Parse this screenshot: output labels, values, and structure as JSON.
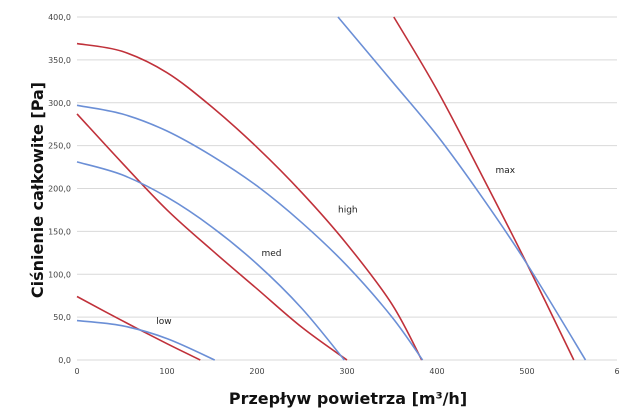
{
  "chart_data": {
    "type": "line",
    "title": "",
    "xlabel": "Przepływ powietrza [m³/h]",
    "ylabel": "Ciśnienie całkowite [Pa]",
    "xlim": [
      0,
      600
    ],
    "ylim": [
      0,
      400
    ],
    "x_ticks": [
      "0",
      "100",
      "200",
      "300",
      "400",
      "500",
      "6"
    ],
    "y_ticks": [
      "0,0",
      "50,0",
      "100,0",
      "150,0",
      "200,0",
      "250,0",
      "300,0",
      "350,0",
      "400,0"
    ],
    "grid": "horizontal",
    "legend": "none",
    "series": [
      {
        "color": "#c0313a",
        "x": [
          0,
          50,
          100,
          150,
          200,
          250,
          300,
          350,
          383
        ],
        "y": [
          369,
          360,
          335,
          295,
          248,
          195,
          135,
          65,
          0
        ]
      },
      {
        "color": "#c0313a",
        "x": [
          0,
          50,
          100,
          150,
          200,
          250,
          300
        ],
        "y": [
          287,
          230,
          175,
          128,
          83,
          38,
          0
        ]
      },
      {
        "color": "#c0313a",
        "x": [
          0,
          50,
          100,
          137
        ],
        "y": [
          74,
          46,
          19,
          0
        ]
      },
      {
        "color": "#c0313a",
        "x": [
          352,
          400,
          450,
          500,
          552
        ],
        "y": [
          400,
          315,
          215,
          112,
          0
        ]
      },
      {
        "color": "#6b8fd6",
        "x": [
          0,
          50,
          100,
          150,
          200,
          250,
          300,
          350,
          384
        ],
        "y": [
          297,
          287,
          267,
          238,
          203,
          160,
          110,
          50,
          0
        ]
      },
      {
        "color": "#6b8fd6",
        "x": [
          0,
          50,
          100,
          150,
          200,
          250,
          297
        ],
        "y": [
          231,
          216,
          190,
          155,
          112,
          60,
          0
        ]
      },
      {
        "color": "#6b8fd6",
        "x": [
          0,
          50,
          100,
          153
        ],
        "y": [
          46,
          40,
          25,
          0
        ]
      },
      {
        "color": "#6b8fd6",
        "x": [
          290,
          350,
          400,
          450,
          500,
          565
        ],
        "y": [
          400,
          325,
          262,
          190,
          112,
          0
        ]
      }
    ],
    "annotations": [
      {
        "text": "low",
        "x": 88,
        "y": 42
      },
      {
        "text": "med",
        "x": 205,
        "y": 121
      },
      {
        "text": "high",
        "x": 290,
        "y": 172
      },
      {
        "text": "max",
        "x": 465,
        "y": 218
      }
    ]
  }
}
